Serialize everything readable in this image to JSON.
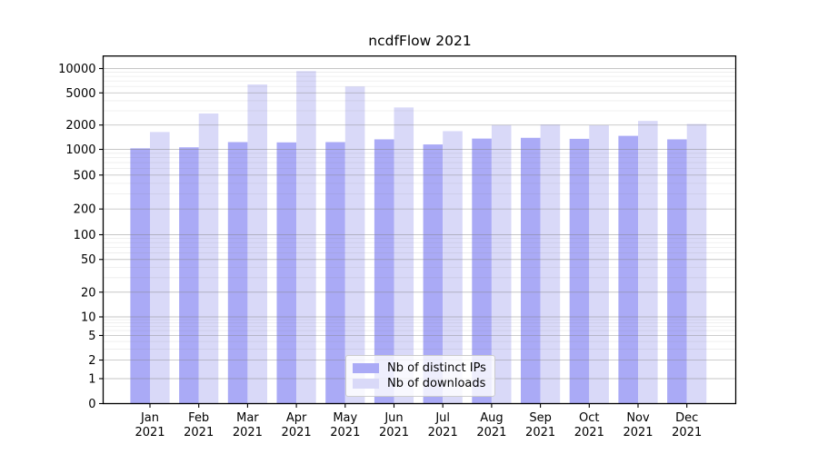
{
  "chart_data": {
    "type": "bar",
    "title": "ncdfFlow 2021",
    "categories": [
      "Jan",
      "Feb",
      "Mar",
      "Apr",
      "May",
      "Jun",
      "Jul",
      "Aug",
      "Sep",
      "Oct",
      "Nov",
      "Dec"
    ],
    "category_year": "2021",
    "series": [
      {
        "name": "Nb of distinct IPs",
        "color": "#aaaaf6",
        "values": [
          1030,
          1060,
          1230,
          1220,
          1230,
          1330,
          1150,
          1360,
          1390,
          1350,
          1470,
          1330
        ]
      },
      {
        "name": "Nb of downloads",
        "color": "#d9d9f8",
        "values": [
          1640,
          2780,
          6350,
          9300,
          6000,
          3300,
          1680,
          2000,
          2030,
          1990,
          2250,
          2060
        ]
      }
    ],
    "y_ticks": [
      0,
      1,
      2,
      5,
      10,
      20,
      50,
      100,
      200,
      500,
      1000,
      2000,
      5000,
      10000
    ],
    "y_scale": "symlog",
    "ylim": [
      0,
      10000
    ],
    "xlabel": "",
    "ylabel": "",
    "grid": "horizontal major and minor, drawn over bars",
    "legend_position": "inside bottom-center"
  }
}
